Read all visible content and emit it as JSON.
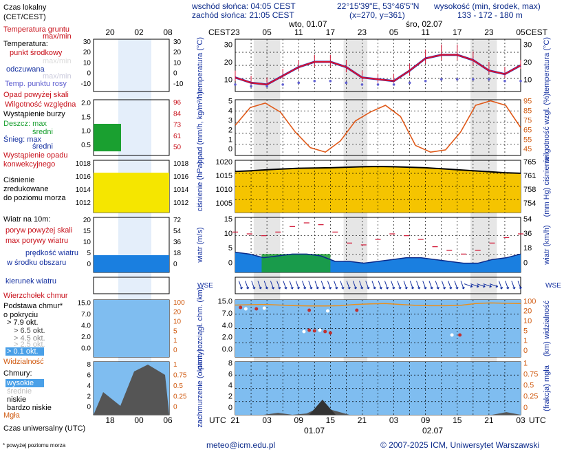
{
  "header": {
    "sunrise": "wschód słońca: 04:05 CEST",
    "sunset": "zachód słońca: 21:05 CEST",
    "coords": "22°15'39\"E, 53°46'5\"N",
    "grid": "(x=270, y=361)",
    "altitude_label": "wysokość (min, środek, max)",
    "altitude_values": "133 - 172 - 180 m"
  },
  "footer": {
    "email": "meteo@icm.edu.pl",
    "copyright": "© 2007-2025 ICM, Uniwersytet Warszawski",
    "note": "* powyżej poziomu morza",
    "utc_label": "Czas uniwersalny (UTC)"
  },
  "legend": {
    "local_time": "Czas lokalny",
    "local_time2": "(CET/CEST)",
    "soil_temp": "Temperatura gruntu",
    "max_min": "max/min",
    "temperature": "Temperatura:",
    "mid_point": "punkt środkowy",
    "maxmin_faint": "max/min",
    "feels": "odczuwana",
    "maxmin_faint2": "max/min",
    "dew": "Temp. punktu rosy",
    "precip_above": "Opad powyżej skali",
    "humidity": "Wilgotność względna",
    "storm": "Wystąpienie burzy",
    "rain_max": "Deszcz: max",
    "rain_mid": "średni",
    "snow_max": "Śnieg:   max",
    "snow_mid": "średni",
    "conv1": "Wystąpienie opadu",
    "conv2": "konwekcyjnego",
    "press1": "Ciśnienie",
    "press2": "zredukowane",
    "press3": "do poziomu morza",
    "wind_title": "Wiatr na 10m:",
    "gust_above": "poryw powyżej skali",
    "gust_max": "max porywy wiatru",
    "wind_mid1": "prędkość wiatru",
    "wind_mid2": "w środku obszaru",
    "wind_dir": "kierunek wiatru",
    "cloud_top": "Wierzchołek chmur",
    "cloud_base1": "Podstawa chmur*",
    "cloud_base2": "o pokryciu",
    "okt1": "> 7.9 okt.",
    "okt2": "> 6.5 okt.",
    "okt3": "> 4.5 okt.",
    "okt4": "> 2.5 okt.",
    "okt5": "> 0.1 okt.",
    "visibility": "Widzialność",
    "clouds": "Chmury:",
    "high": "wysokie",
    "mid": "średnie",
    "low": "niskie",
    "very_low": "bardzo niskie",
    "fog": "Mgła"
  },
  "chart_data": {
    "type": "meteogram",
    "time": {
      "cest_label": "CEST",
      "utc_label": "UTC",
      "cest_ticks": [
        "23",
        "05",
        "11",
        "17",
        "23",
        "05",
        "11",
        "17",
        "23",
        "05"
      ],
      "utc_ticks": [
        "21",
        "03",
        "09",
        "15",
        "21",
        "03",
        "09",
        "15",
        "21",
        "03"
      ],
      "days": [
        "wto, 01.07",
        "śro, 02.07"
      ],
      "utc_days": [
        "01.07",
        "02.07"
      ],
      "legend_cest_ticks": [
        "20",
        "02",
        "08"
      ],
      "legend_utc_ticks": [
        "18",
        "00",
        "06"
      ]
    },
    "temperature": {
      "ylabel": "temperatura (°C)",
      "ylim": [
        5,
        35
      ],
      "ticks_left": [
        "30",
        "20",
        "10"
      ],
      "ticks_right": [
        "30",
        "20",
        "10"
      ],
      "legend_ticks_left": [
        "30",
        "20",
        "10",
        "0",
        "-10"
      ],
      "legend_ticks_right": [
        "30",
        "20",
        "10",
        "0",
        "-10"
      ],
      "hours_utc": [
        0,
        3,
        6,
        9,
        12,
        15,
        18,
        21,
        24,
        27,
        30,
        33,
        36,
        39,
        42,
        45,
        48,
        51,
        54
      ],
      "mid": [
        13,
        10,
        9,
        14,
        19,
        22,
        22,
        19,
        13,
        12,
        11,
        17,
        24,
        26,
        26,
        23,
        17,
        15,
        20
      ],
      "max": [
        17,
        14,
        13,
        18,
        23,
        26,
        26,
        23,
        17,
        15,
        15,
        21,
        29,
        32,
        32,
        28,
        22,
        19,
        23
      ],
      "min": [
        11,
        9,
        8,
        12,
        17,
        19,
        19,
        16,
        11,
        10,
        10,
        14,
        21,
        23,
        23,
        20,
        15,
        13,
        18
      ],
      "dew": [
        9,
        8,
        8,
        9,
        10,
        11,
        11,
        10,
        9,
        9,
        9,
        10,
        11,
        12,
        12,
        12,
        12,
        11,
        11
      ]
    },
    "humidity": {
      "ylabel_left": "opad (mm/h, kg/m²/h)",
      "ylabel_right": "wilgotność wzgl. (%)",
      "ticks_left": [
        "5",
        "4",
        "3",
        "2",
        "1",
        "0"
      ],
      "ticks_right": [
        "95",
        "85",
        "75",
        "65",
        "55",
        "45"
      ],
      "legend_ticks_left": [
        "2.0",
        "1.5",
        "1.0",
        "0.5"
      ],
      "legend_ticks_right": [
        "96",
        "84",
        "73",
        "61",
        "50"
      ],
      "ylim_right": [
        45,
        95
      ],
      "values": [
        72,
        88,
        92,
        84,
        66,
        52,
        48,
        58,
        76,
        84,
        90,
        80,
        54,
        48,
        50,
        66,
        90,
        94,
        90,
        70
      ]
    },
    "pressure": {
      "ylabel_left": "ciśnienie (hPa)",
      "ylabel_right": "(mm Hg) ciśnienie",
      "ticks_left": [
        "1020",
        "1015",
        "1010",
        "1005"
      ],
      "ticks_right": [
        "765",
        "761",
        "758",
        "754"
      ],
      "legend_ticks_left": [
        "1018",
        "1016",
        "1014",
        "1012"
      ],
      "legend_ticks_right": [
        "1018",
        "1016",
        "1014",
        "1012"
      ],
      "ylim": [
        1002,
        1023
      ],
      "values": [
        1018.5,
        1018.8,
        1019.2,
        1019.5,
        1019.8,
        1019.9,
        1020.0,
        1020.2,
        1020.4,
        1020.5,
        1020.4,
        1020.2,
        1020.0,
        1019.6,
        1019.2,
        1018.8,
        1018.4,
        1018.0,
        1017.8
      ]
    },
    "wind": {
      "ylabel_left": "wiatr (m/s)",
      "ylabel_right": "wiatr (km/h)",
      "ticks_left": [
        "15",
        "10",
        "5",
        "0"
      ],
      "ticks_right": [
        "54",
        "36",
        "18",
        "0"
      ],
      "legend_ticks_left": [
        "20",
        "15",
        "10",
        "5",
        "0"
      ],
      "legend_ticks_right": [
        "72",
        "54",
        "36",
        "18",
        "0"
      ],
      "ylim": [
        0,
        15
      ],
      "speed": [
        5.5,
        5,
        4,
        4.5,
        5,
        5,
        4.5,
        3,
        3,
        2.5,
        3,
        3.5,
        4,
        4,
        3.5,
        3,
        2.5,
        2.5,
        3.5,
        4,
        5
      ],
      "gust": [
        11,
        10.5,
        10,
        11,
        12.5,
        13.5,
        13,
        11,
        8,
        7.5,
        9,
        10.5,
        10,
        9,
        7,
        6,
        5,
        6,
        8,
        9.5,
        10.5
      ]
    },
    "cloudbase": {
      "ylabel_left": "pion. rozciągł. chm. (km)",
      "ylabel_right": "(km) widzialność",
      "ticks_left": [
        "15.0",
        "7.0",
        "4.0",
        "2.0",
        "0.0"
      ],
      "ticks_right": [
        "100",
        "20",
        "10",
        "5",
        "1",
        "0"
      ],
      "legend_ticks_left": [
        "15.0",
        "7.0",
        "4.0",
        "2.0",
        "0.0"
      ],
      "legend_ticks_right": [
        "100",
        "20",
        "10",
        "5",
        "1",
        "0"
      ],
      "visibility": [
        34,
        32,
        30,
        34,
        38,
        40,
        40,
        38,
        30,
        26,
        24,
        30,
        36,
        38,
        38,
        36,
        24,
        20,
        22,
        24
      ]
    },
    "clouds": {
      "ylabel_left": "zachmurzenie (oktanty)",
      "ylabel_right": "(frakcja) mgła",
      "ticks_left": [
        "8",
        "6",
        "4",
        "2",
        "0"
      ],
      "ticks_right": [
        "1",
        "0.75",
        "0.5",
        "0.25",
        "0"
      ],
      "legend_ticks_left": [
        "8",
        "6",
        "4",
        "2",
        "0"
      ],
      "legend_ticks_right": [
        "1",
        "0.75",
        "0.5",
        "0.25",
        "0"
      ],
      "low": [
        0,
        0,
        0,
        0.3,
        0,
        0.2,
        1.2,
        0.6,
        0,
        0,
        0,
        0,
        0,
        0,
        0,
        0,
        0,
        0,
        0,
        0.4,
        0
      ]
    }
  }
}
